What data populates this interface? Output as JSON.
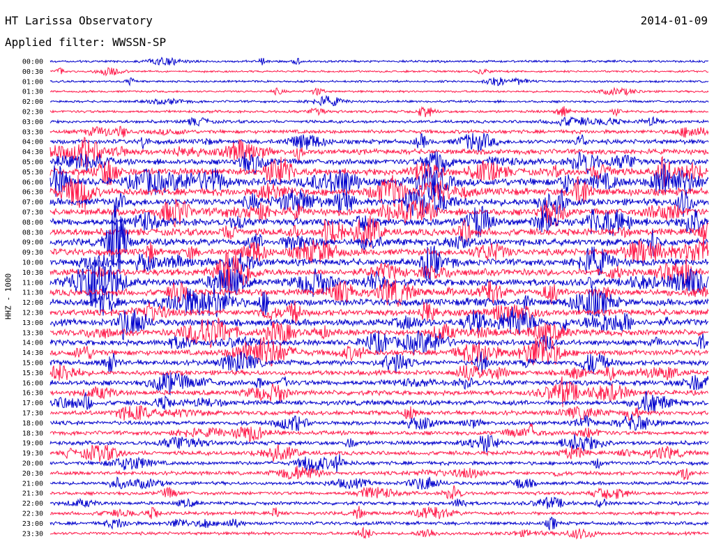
{
  "header": {
    "station": "HT Larissa Observatory",
    "date": "2014-01-09",
    "filter": "Applied filter: WWSSN-SP"
  },
  "chart_data": {
    "type": "line",
    "title": "HT Larissa Observatory",
    "subtitle": "Applied filter: WWSSN-SP",
    "ylabel": "HHZ - 1000",
    "xlabel": "",
    "trace_colors": [
      "#0000cc",
      "#ff1a4a"
    ],
    "rows": [
      "00:00",
      "00:30",
      "01:00",
      "01:30",
      "02:00",
      "02:30",
      "03:00",
      "03:30",
      "04:00",
      "04:30",
      "05:00",
      "05:30",
      "06:00",
      "06:30",
      "07:00",
      "07:30",
      "08:00",
      "08:30",
      "09:00",
      "09:30",
      "10:00",
      "10:30",
      "11:00",
      "11:30",
      "12:00",
      "12:30",
      "13:00",
      "13:30",
      "14:00",
      "14:30",
      "15:00",
      "15:30",
      "16:00",
      "16:30",
      "17:00",
      "17:30",
      "18:00",
      "18:30",
      "19:00",
      "19:30",
      "20:00",
      "20:30",
      "21:00",
      "21:30",
      "22:00",
      "22:30",
      "23:00",
      "23:30"
    ],
    "relative_amplitude": [
      0.15,
      0.12,
      0.12,
      0.12,
      0.15,
      0.2,
      0.25,
      0.35,
      0.45,
      0.55,
      0.6,
      0.8,
      0.9,
      0.85,
      0.8,
      0.75,
      0.85,
      0.8,
      0.8,
      0.75,
      0.75,
      0.75,
      0.8,
      0.75,
      0.75,
      0.7,
      0.75,
      0.65,
      0.6,
      0.6,
      0.55,
      0.5,
      0.55,
      0.5,
      0.5,
      0.45,
      0.4,
      0.4,
      0.4,
      0.4,
      0.35,
      0.35,
      0.3,
      0.3,
      0.3,
      0.3,
      0.3,
      0.25
    ]
  }
}
